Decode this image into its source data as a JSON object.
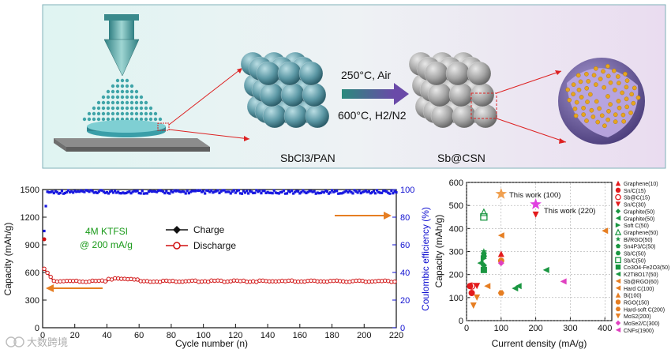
{
  "top": {
    "arrow_top_label": "250°C, Air",
    "arrow_bottom_label": "600°C, H2/N2",
    "left_label": "SbCl3/PAN",
    "right_label": "Sb@CSN"
  },
  "left_plot": {
    "xlabel": "Cycle number (n)",
    "ylabel_left": "Capacity (mAh/g)",
    "ylabel_right": "Coulombic efficiency (%)",
    "annotation_line1": "4M KTFSI",
    "annotation_line2": "@ 200 mA/g",
    "legend_charge": "Charge",
    "legend_discharge": "Discharge",
    "x_ticks": [
      "0",
      "20",
      "40",
      "60",
      "80",
      "100",
      "120",
      "140",
      "160",
      "180",
      "200",
      "220"
    ],
    "y_left_ticks": [
      "0",
      "300",
      "600",
      "900",
      "1200",
      "1500"
    ],
    "y_right_ticks": [
      "0",
      "20",
      "40",
      "60",
      "80",
      "100"
    ]
  },
  "right_plot": {
    "xlabel": "Current density (mA/g)",
    "ylabel": "Capacity (mAh/g)",
    "x_ticks": [
      "0",
      "100",
      "200",
      "300",
      "400"
    ],
    "y_ticks": [
      "0",
      "100",
      "200",
      "300",
      "400",
      "500",
      "600"
    ],
    "this_work_100": "This work (100)",
    "this_work_220": "This work (220)"
  },
  "legend_items": [
    {
      "label": "Graphene(10)",
      "color": "#e31a1c",
      "marker": "tri-up"
    },
    {
      "label": "Sn/C(15)",
      "color": "#e31a1c",
      "marker": "circle"
    },
    {
      "label": "Sb@C(15)",
      "color": "#e31a1c",
      "marker": "circle-open"
    },
    {
      "label": "Sn/C(30)",
      "color": "#e31a1c",
      "marker": "tri-down"
    },
    {
      "label": "Graphite(50)",
      "color": "#1a9641",
      "marker": "diamond"
    },
    {
      "label": "Graphite(50)",
      "color": "#1a9641",
      "marker": "tri-left"
    },
    {
      "label": "Soft C(50)",
      "color": "#1a9641",
      "marker": "tri-right"
    },
    {
      "label": "Graphene(50)",
      "color": "#1a9641",
      "marker": "tri-up-open"
    },
    {
      "label": "Bi/RGO(50)",
      "color": "#1a9641",
      "marker": "star"
    },
    {
      "label": "Sn4P3/C(50)",
      "color": "#1a9641",
      "marker": "pentagon"
    },
    {
      "label": "Sb/C(50)",
      "color": "#1a9641",
      "marker": "hexagon"
    },
    {
      "label": "Sb/C(50)",
      "color": "#1a9641",
      "marker": "square-open"
    },
    {
      "label": "Co3O4-Fe2O3(50)",
      "color": "#1a9641",
      "marker": "square"
    },
    {
      "label": "K2Ti8O17(50)",
      "color": "#1a9641",
      "marker": "tri-left"
    },
    {
      "label": "Sb@RGO(60)",
      "color": "#e67e22",
      "marker": "tri-left"
    },
    {
      "label": "Hard C(100)",
      "color": "#e67e22",
      "marker": "tri-left"
    },
    {
      "label": "Bi(100)",
      "color": "#e67e22",
      "marker": "tri-up"
    },
    {
      "label": "RGO(150)",
      "color": "#e67e22",
      "marker": "circle"
    },
    {
      "label": "Hard-soft C(200)",
      "color": "#e67e22",
      "marker": "hexagon"
    },
    {
      "label": "MoS2(200)",
      "color": "#e67e22",
      "marker": "tri-down"
    },
    {
      "label": "MoSe2/C(300)",
      "color": "#e040c0",
      "marker": "diamond"
    },
    {
      "label": "CNFs(1900)",
      "color": "#e040c0",
      "marker": "tri-left"
    }
  ],
  "watermark": "大数跨境"
}
